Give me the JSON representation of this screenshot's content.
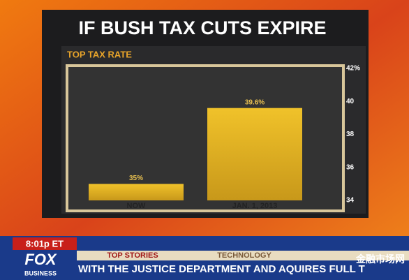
{
  "chart_data": {
    "type": "bar",
    "title": "IF BUSH TAX CUTS EXPIRE",
    "subtitle": "TOP TAX RATE",
    "categories": [
      "NOW",
      "JAN. 1, 2013"
    ],
    "values": [
      35,
      39.6
    ],
    "value_labels": [
      "35%",
      "39.6%"
    ],
    "color": "#e0b21c",
    "ylim": [
      34,
      42
    ],
    "yticks": [
      34,
      36,
      38,
      40,
      {
        "value": 42,
        "label": "42%"
      }
    ],
    "grid": false
  },
  "ticker": {
    "time": "8:01p ET",
    "network": "FOX",
    "network_sub": "BUSINESS",
    "tabs": [
      "TOP STORIES",
      "TECHNOLOGY"
    ],
    "crawl": "WITH THE JUSTICE DEPARTMENT AND AQUIRES FULL T",
    "watermark": "金融市场网"
  }
}
